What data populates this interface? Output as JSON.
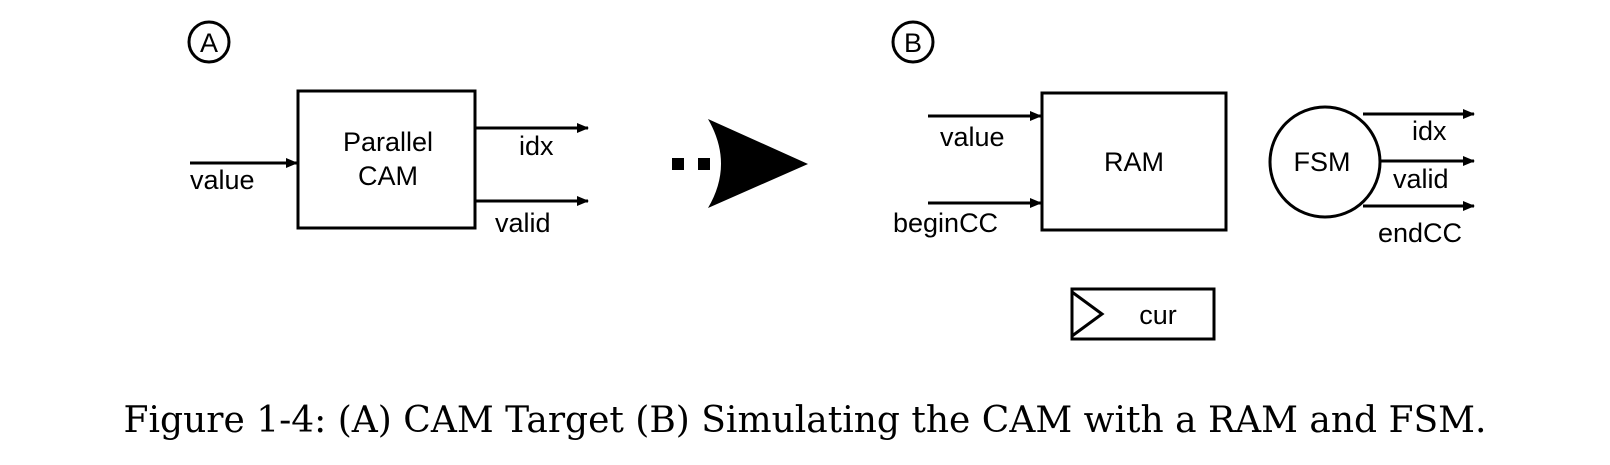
{
  "panel_a": {
    "marker": "A",
    "block_label_line1": "Parallel",
    "block_label_line2": "CAM",
    "input_value": "value",
    "output_idx": "idx",
    "output_valid": "valid"
  },
  "panel_b": {
    "marker": "B",
    "ram_label": "RAM",
    "input_value": "value",
    "input_begin": "beginCC",
    "fsm_label": "FSM",
    "output_idx": "idx",
    "output_valid": "valid",
    "output_end": "endCC",
    "register_label": "cur"
  },
  "caption": "Figure 1-4: (A) CAM Target (B) Simulating the CAM with a RAM and FSM."
}
